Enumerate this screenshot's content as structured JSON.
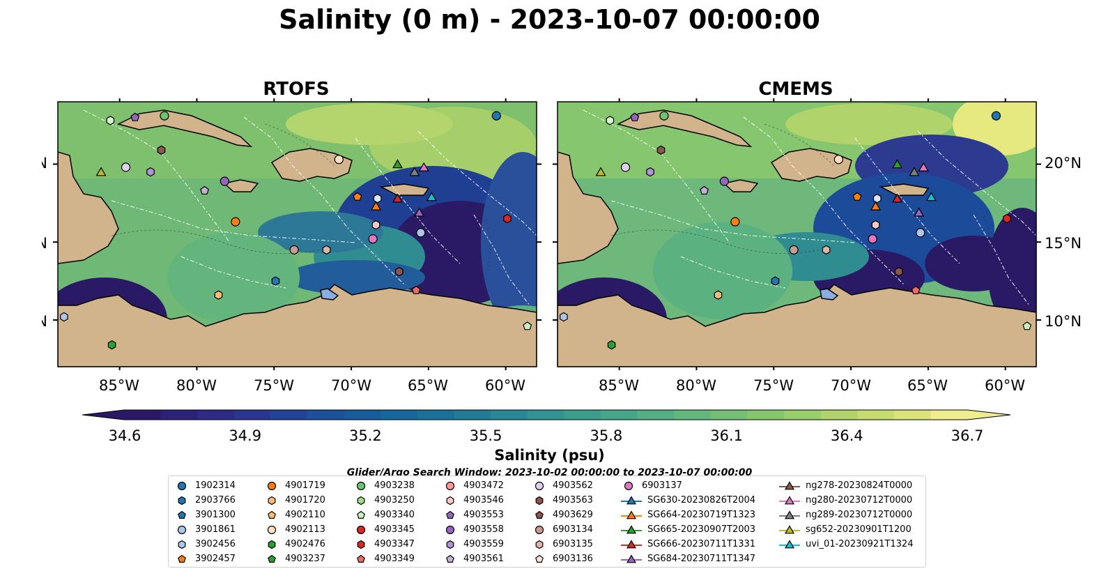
{
  "title": "Salinity (0 m) - 2023-10-07 00:00:00",
  "panels": [
    {
      "title": "RTOFS"
    },
    {
      "title": "CMEMS"
    }
  ],
  "lat_labels": [
    "20°N",
    "15°N",
    "10°N"
  ],
  "lon_labels": [
    "85°W",
    "80°W",
    "75°W",
    "70°W",
    "65°W",
    "60°W"
  ],
  "colorbar": {
    "label": "Salinity (psu)",
    "ticks": [
      "34.6",
      "34.9",
      "35.2",
      "35.5",
      "35.8",
      "36.1",
      "36.4",
      "36.7"
    ],
    "colors": [
      "#2a1a66",
      "#2c2277",
      "#2e2b86",
      "#2b3691",
      "#234397",
      "#1c509a",
      "#185c9b",
      "#18679a",
      "#1b7299",
      "#227c97",
      "#2a8795",
      "#339292",
      "#3c9c8e",
      "#47a589",
      "#55ae83",
      "#64b77c",
      "#74bf75",
      "#86c66f",
      "#9acd6b",
      "#b0d46b",
      "#c6dc70",
      "#dbe47b",
      "#f0ec90"
    ]
  },
  "search_window": "Glider/Argo Search Window: 2023-10-02 00:00:00 to 2023-10-07 00:00:00",
  "land_color": "#d2b48c",
  "legend": {
    "columns": [
      [
        {
          "label": "1902314",
          "marker": "circle",
          "color": "#1f77b4"
        },
        {
          "label": "2903766",
          "marker": "hexagon",
          "color": "#1f77b4"
        },
        {
          "label": "3901300",
          "marker": "pentagon",
          "color": "#1f77b4"
        },
        {
          "label": "3901861",
          "marker": "circle",
          "color": "#aec7e8"
        },
        {
          "label": "3902456",
          "marker": "hexagon",
          "color": "#aec7e8"
        },
        {
          "label": "3902457",
          "marker": "pentagon",
          "color": "#ff7f0e"
        }
      ],
      [
        {
          "label": "4901719",
          "marker": "circle",
          "color": "#ff7f0e"
        },
        {
          "label": "4901720",
          "marker": "hexagon",
          "color": "#ffbb78"
        },
        {
          "label": "4902110",
          "marker": "pentagon",
          "color": "#ffbb78"
        },
        {
          "label": "4902113",
          "marker": "circle",
          "color": "#fde0c5"
        },
        {
          "label": "4902476",
          "marker": "hexagon",
          "color": "#2ca02c"
        },
        {
          "label": "4903237",
          "marker": "pentagon",
          "color": "#2ca02c"
        }
      ],
      [
        {
          "label": "4903238",
          "marker": "circle",
          "color": "#6cc46c"
        },
        {
          "label": "4903250",
          "marker": "hexagon",
          "color": "#98df8a"
        },
        {
          "label": "4903340",
          "marker": "pentagon",
          "color": "#c8f0c0"
        },
        {
          "label": "4903345",
          "marker": "circle",
          "color": "#d62728"
        },
        {
          "label": "4903347",
          "marker": "hexagon",
          "color": "#d62728"
        },
        {
          "label": "4903349",
          "marker": "pentagon",
          "color": "#ee6a6a"
        }
      ],
      [
        {
          "label": "4903472",
          "marker": "circle",
          "color": "#ff9896"
        },
        {
          "label": "4903546",
          "marker": "hexagon",
          "color": "#ffc8c6"
        },
        {
          "label": "4903553",
          "marker": "pentagon",
          "color": "#9467bd"
        },
        {
          "label": "4903558",
          "marker": "circle",
          "color": "#9467bd"
        },
        {
          "label": "4903559",
          "marker": "hexagon",
          "color": "#b294d6"
        },
        {
          "label": "4903561",
          "marker": "pentagon",
          "color": "#c5b0d5"
        }
      ],
      [
        {
          "label": "4903562",
          "marker": "circle",
          "color": "#e0d0f0"
        },
        {
          "label": "4903563",
          "marker": "hexagon",
          "color": "#8c564b"
        },
        {
          "label": "4903629",
          "marker": "pentagon",
          "color": "#8c564b"
        },
        {
          "label": "6903134",
          "marker": "circle",
          "color": "#c49c94"
        },
        {
          "label": "6903135",
          "marker": "hexagon",
          "color": "#dcb8a8"
        },
        {
          "label": "6903136",
          "marker": "pentagon",
          "color": "#fbe0d6"
        }
      ],
      [
        {
          "label": "6903137",
          "marker": "circle",
          "color": "#e377c2"
        },
        {
          "label": "SG630-20230826T2004",
          "marker": "triangle",
          "color": "#1f77b4"
        },
        {
          "label": "SG664-20230719T1323",
          "marker": "triangle",
          "color": "#ff7f0e"
        },
        {
          "label": "SG665-20230907T2003",
          "marker": "triangle",
          "color": "#2ca02c"
        },
        {
          "label": "SG666-20230711T1331",
          "marker": "triangle",
          "color": "#d62728"
        },
        {
          "label": "SG684-20230711T1347",
          "marker": "triangle",
          "color": "#9467bd"
        }
      ],
      [
        {
          "label": "ng278-20230824T0000",
          "marker": "triangle",
          "color": "#8c564b"
        },
        {
          "label": "ng280-20230712T0000",
          "marker": "triangle",
          "color": "#e377c2"
        },
        {
          "label": "ng289-20230712T0000",
          "marker": "triangle",
          "color": "#7f7f7f"
        },
        {
          "label": "sg652-20230901T1200",
          "marker": "triangle",
          "color": "#bcbd22"
        },
        {
          "label": "uvi_01-20230921T1324",
          "marker": "triangle",
          "color": "#17becf"
        }
      ]
    ]
  },
  "stations": [
    {
      "lon": -60.6,
      "lat": 23.1,
      "marker": "circle",
      "color": "#1f77b4"
    },
    {
      "lon": -85.6,
      "lat": 22.8,
      "marker": "hexagon",
      "color": "#d7f5d0"
    },
    {
      "lon": -84.0,
      "lat": 23.0,
      "marker": "pentagon",
      "color": "#9467bd"
    },
    {
      "lon": -82.1,
      "lat": 23.1,
      "marker": "circle",
      "color": "#6cc46c"
    },
    {
      "lon": -82.3,
      "lat": 20.9,
      "marker": "hexagon",
      "color": "#8c564b"
    },
    {
      "lon": -86.2,
      "lat": 19.5,
      "marker": "triangle",
      "color": "#bcbd22"
    },
    {
      "lon": -84.6,
      "lat": 19.8,
      "marker": "circle",
      "color": "#e0d0f0"
    },
    {
      "lon": -83.0,
      "lat": 19.5,
      "marker": "hexagon",
      "color": "#b294d6"
    },
    {
      "lon": -79.5,
      "lat": 18.3,
      "marker": "pentagon",
      "color": "#c5b0d5"
    },
    {
      "lon": -78.2,
      "lat": 18.9,
      "marker": "circle",
      "color": "#9467bd"
    },
    {
      "lon": -77.5,
      "lat": 16.3,
      "marker": "circle",
      "color": "#ff7f0e"
    },
    {
      "lon": -73.7,
      "lat": 14.5,
      "marker": "circle",
      "color": "#c49c94"
    },
    {
      "lon": -71.6,
      "lat": 14.5,
      "marker": "hexagon",
      "color": "#dcb8a8"
    },
    {
      "lon": -70.8,
      "lat": 20.3,
      "marker": "circle",
      "color": "#fde0c5"
    },
    {
      "lon": -69.6,
      "lat": 17.9,
      "marker": "pentagon",
      "color": "#ff7f0e"
    },
    {
      "lon": -68.3,
      "lat": 17.8,
      "marker": "hexagon",
      "color": "#d6e6f7"
    },
    {
      "lon": -68.4,
      "lat": 17.3,
      "marker": "triangle",
      "color": "#ff7f0e"
    },
    {
      "lon": -68.4,
      "lat": 16.1,
      "marker": "hexagon",
      "color": "#ffc8c6"
    },
    {
      "lon": -68.6,
      "lat": 15.2,
      "marker": "circle",
      "color": "#e377c2"
    },
    {
      "lon": -67.0,
      "lat": 17.8,
      "marker": "triangle",
      "color": "#d62728"
    },
    {
      "lon": -67.0,
      "lat": 20.0,
      "marker": "triangle",
      "color": "#2ca02c"
    },
    {
      "lon": -65.9,
      "lat": 19.5,
      "marker": "triangle",
      "color": "#7f7f7f"
    },
    {
      "lon": -65.3,
      "lat": 19.8,
      "marker": "triangle",
      "color": "#e377c2"
    },
    {
      "lon": -65.6,
      "lat": 16.9,
      "marker": "triangle",
      "color": "#9467bd"
    },
    {
      "lon": -64.8,
      "lat": 17.9,
      "marker": "triangle",
      "color": "#17becf"
    },
    {
      "lon": -65.5,
      "lat": 15.6,
      "marker": "circle",
      "color": "#aec7e8"
    },
    {
      "lon": -66.9,
      "lat": 13.1,
      "marker": "hexagon",
      "color": "#8c564b"
    },
    {
      "lon": -65.8,
      "lat": 11.9,
      "marker": "pentagon",
      "color": "#ee6a6a"
    },
    {
      "lon": -59.9,
      "lat": 16.5,
      "marker": "hexagon",
      "color": "#d62728"
    },
    {
      "lon": -74.9,
      "lat": 12.5,
      "marker": "hexagon",
      "color": "#1f77b4"
    },
    {
      "lon": -78.6,
      "lat": 11.6,
      "marker": "hexagon",
      "color": "#ffbb78"
    },
    {
      "lon": -88.6,
      "lat": 10.2,
      "marker": "hexagon",
      "color": "#aec7e8"
    },
    {
      "lon": -85.5,
      "lat": 8.4,
      "marker": "hexagon",
      "color": "#2ca02c"
    },
    {
      "lon": -58.6,
      "lat": 9.6,
      "marker": "pentagon",
      "color": "#c8f0c0"
    }
  ]
}
